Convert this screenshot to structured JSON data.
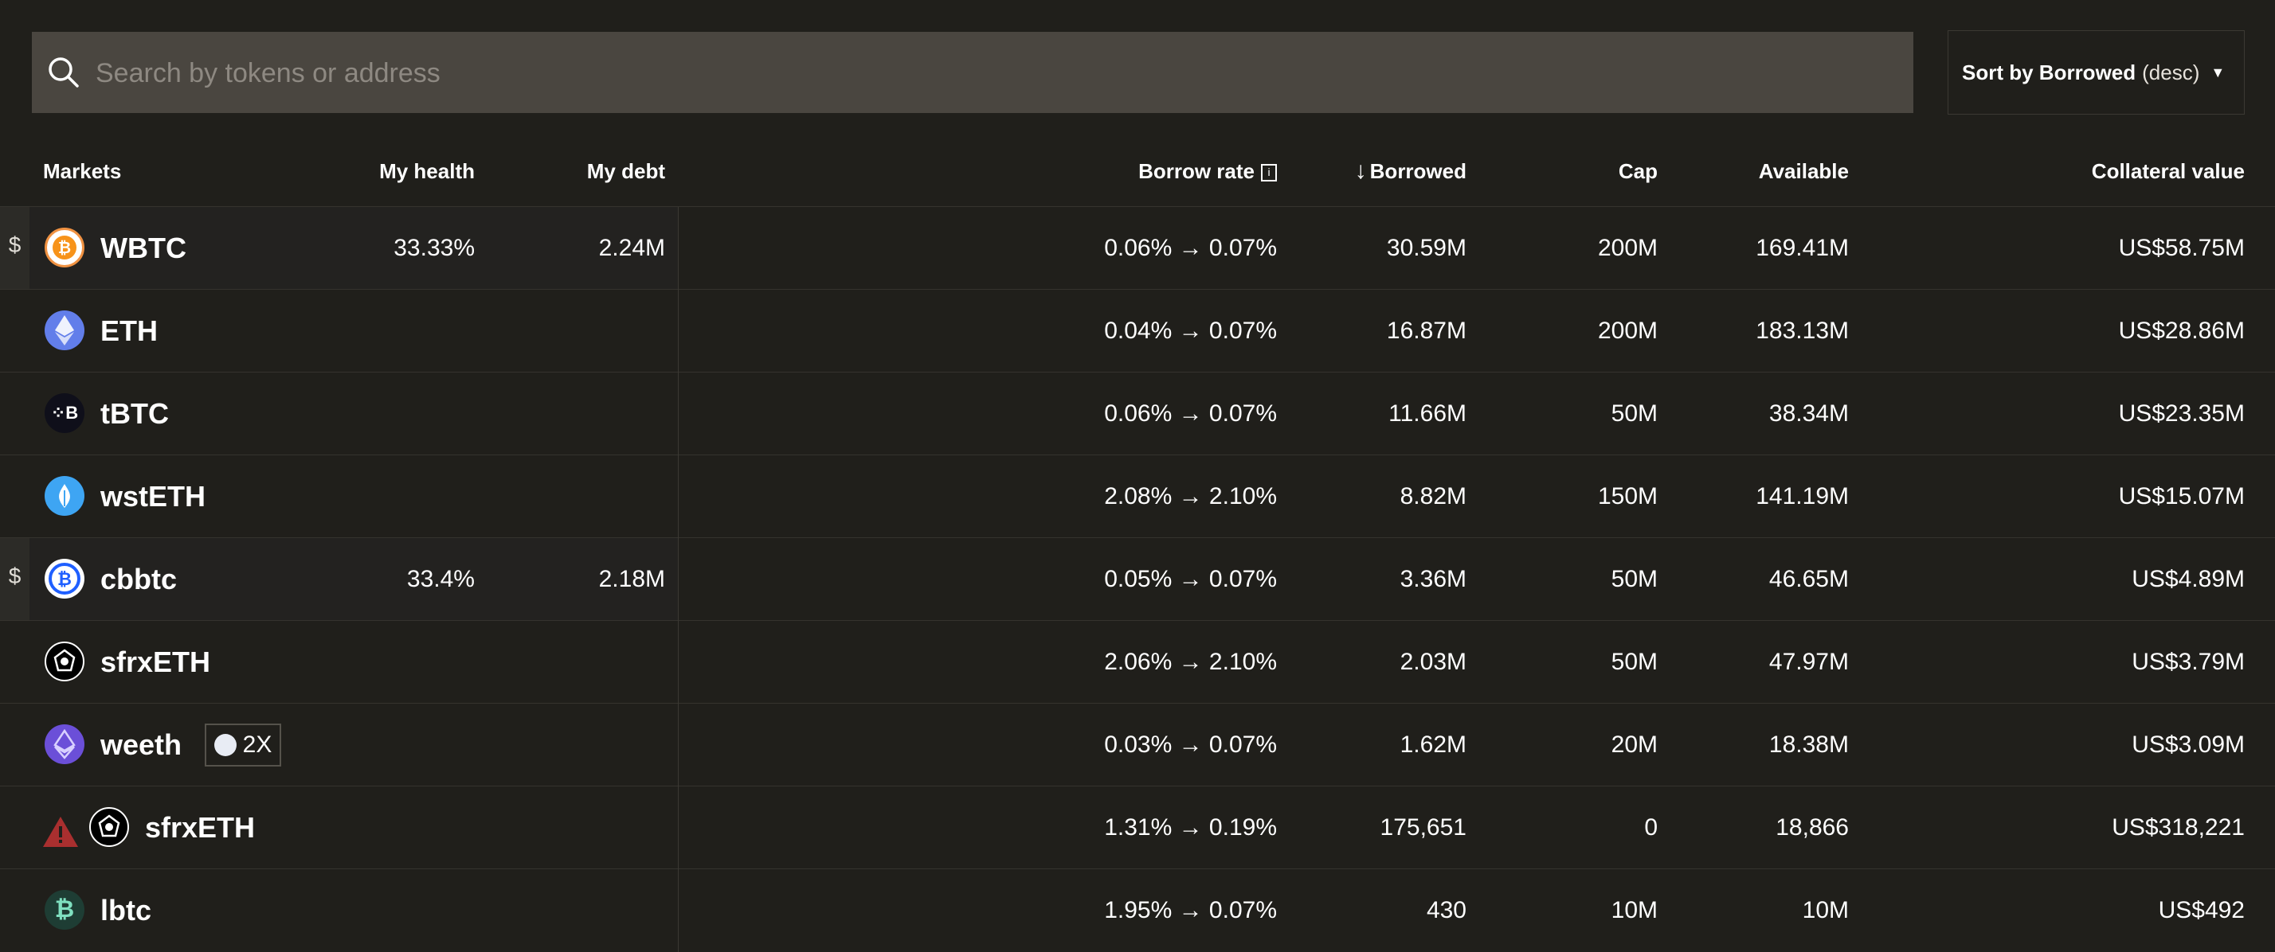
{
  "search": {
    "placeholder": "Search by tokens or address"
  },
  "sort": {
    "label": "Sort by Borrowed",
    "direction": "(desc)"
  },
  "columns": {
    "markets": "Markets",
    "my_health": "My health",
    "my_debt": "My debt",
    "borrow_rate": "Borrow rate",
    "borrowed": "Borrowed",
    "cap": "Cap",
    "available": "Available",
    "collateral_value": "Collateral value"
  },
  "colors": {
    "background": "#201f1b",
    "search_bg": "#4a4640",
    "divider": "#35332e",
    "warning": "#a92f2f"
  },
  "rows": [
    {
      "name": "WBTC",
      "icon": "wbtc-icon",
      "mine": true,
      "my_health": "33.33%",
      "my_debt": "2.24M",
      "borrow_rate": "0.06% → 0.07%",
      "borrowed": "30.59M",
      "cap": "200M",
      "available": "169.41M",
      "collateral_value": "US$58.75M"
    },
    {
      "name": "ETH",
      "icon": "eth-icon",
      "mine": false,
      "my_health": "",
      "my_debt": "",
      "borrow_rate": "0.04% → 0.07%",
      "borrowed": "16.87M",
      "cap": "200M",
      "available": "183.13M",
      "collateral_value": "US$28.86M"
    },
    {
      "name": "tBTC",
      "icon": "tbtc-icon",
      "mine": false,
      "my_health": "",
      "my_debt": "",
      "borrow_rate": "0.06% → 0.07%",
      "borrowed": "11.66M",
      "cap": "50M",
      "available": "38.34M",
      "collateral_value": "US$23.35M"
    },
    {
      "name": "wstETH",
      "icon": "wsteth-icon",
      "mine": false,
      "my_health": "",
      "my_debt": "",
      "borrow_rate": "2.08% → 2.10%",
      "borrowed": "8.82M",
      "cap": "150M",
      "available": "141.19M",
      "collateral_value": "US$15.07M"
    },
    {
      "name": "cbbtc",
      "icon": "cbbtc-icon",
      "mine": true,
      "my_health": "33.4%",
      "my_debt": "2.18M",
      "borrow_rate": "0.05% → 0.07%",
      "borrowed": "3.36M",
      "cap": "50M",
      "available": "46.65M",
      "collateral_value": "US$4.89M"
    },
    {
      "name": "sfrxETH",
      "icon": "sfrxeth-icon",
      "mine": false,
      "my_health": "",
      "my_debt": "",
      "borrow_rate": "2.06% → 2.10%",
      "borrowed": "2.03M",
      "cap": "50M",
      "available": "47.97M",
      "collateral_value": "US$3.79M"
    },
    {
      "name": "weeth",
      "icon": "weeth-icon",
      "mine": false,
      "badge": "2X",
      "my_health": "",
      "my_debt": "",
      "borrow_rate": "0.03% → 0.07%",
      "borrowed": "1.62M",
      "cap": "20M",
      "available": "18.38M",
      "collateral_value": "US$3.09M"
    },
    {
      "name": "sfrxETH",
      "icon": "sfrxeth-icon",
      "mine": false,
      "warning": true,
      "my_health": "",
      "my_debt": "",
      "borrow_rate": "1.31% → 0.19%",
      "borrowed": "175,651",
      "cap": "0",
      "available": "18,866",
      "collateral_value": "US$318,221"
    },
    {
      "name": "lbtc",
      "icon": "lbtc-icon",
      "mine": false,
      "my_health": "",
      "my_debt": "",
      "borrow_rate": "1.95% → 0.07%",
      "borrowed": "430",
      "cap": "10M",
      "available": "10M",
      "collateral_value": "US$492"
    }
  ],
  "dollar_marker": "$"
}
